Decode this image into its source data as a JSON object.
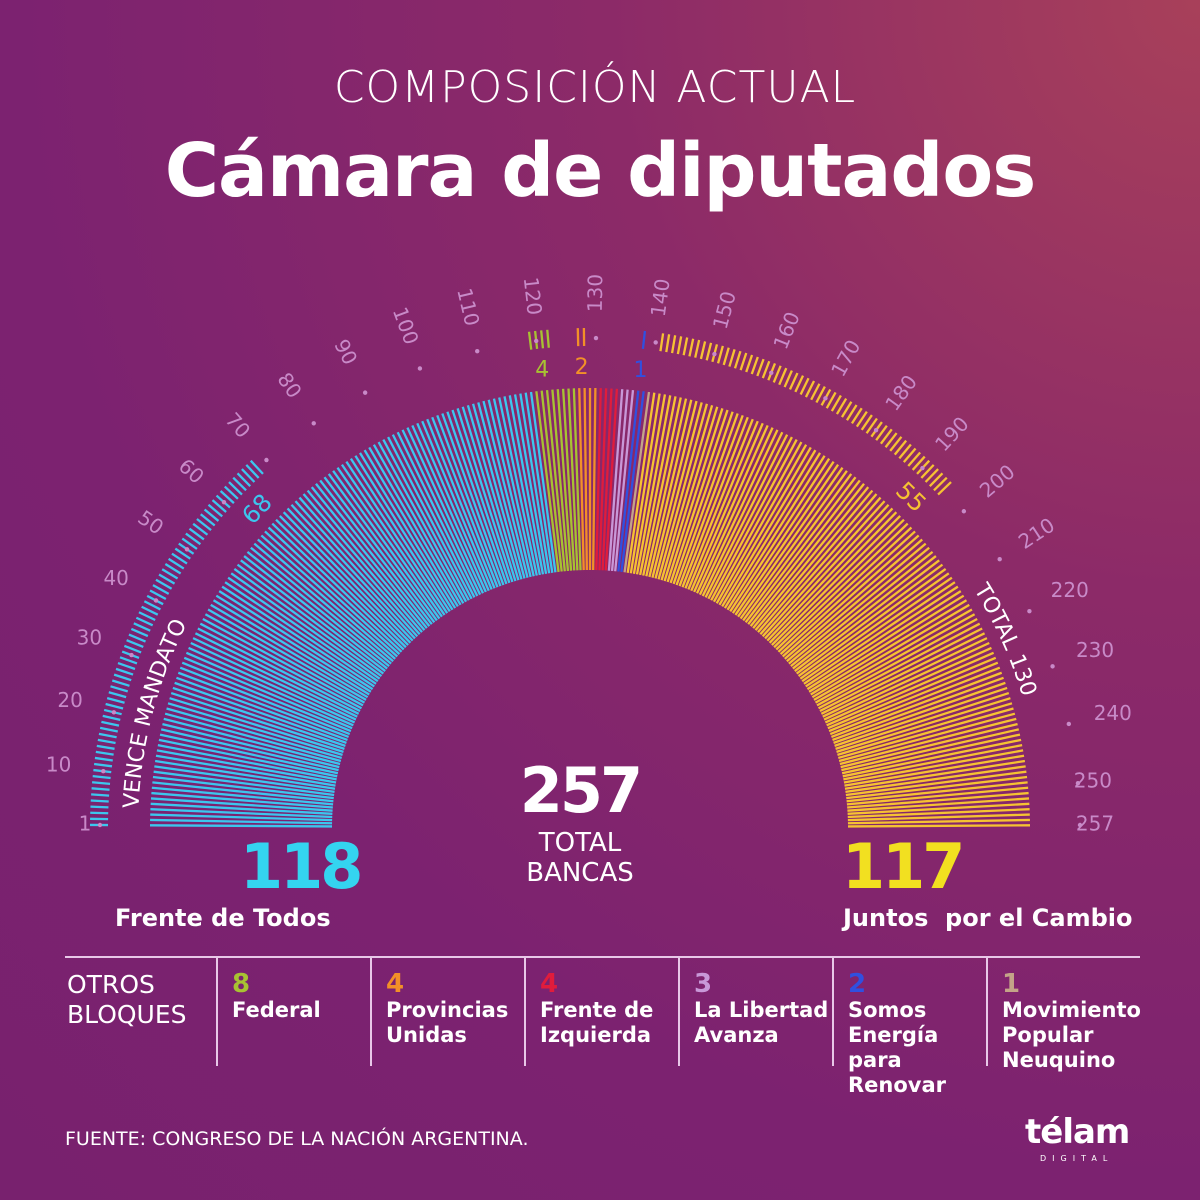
{
  "header": {
    "subtitle": "COMPOSICIÓN ACTUAL",
    "title": "Cámara de diputados"
  },
  "chart_data": {
    "type": "parliament",
    "total_seats": 257,
    "total_value": "257",
    "total_label_1": "TOTAL",
    "total_label_2": "BANCAS",
    "tick_labels": [
      "1",
      "10",
      "20",
      "30",
      "40",
      "50",
      "60",
      "70",
      "80",
      "90",
      "100",
      "110",
      "120",
      "130",
      "140",
      "150",
      "160",
      "170",
      "180",
      "190",
      "200",
      "210",
      "220",
      "230",
      "240",
      "250",
      "257"
    ],
    "ring_label_left": "VENCE MANDATO",
    "ring_label_right": "TOTAL 130",
    "blocks": [
      {
        "name": "Frente de Todos",
        "seats": 118,
        "expiring": 68,
        "color": "#3cc6ee",
        "expiring_label": "68"
      },
      {
        "name": "Federal",
        "seats": 8,
        "expiring": 4,
        "color": "#a8c232",
        "expiring_label": "4"
      },
      {
        "name": "Provincias Unidas",
        "seats": 4,
        "expiring": 2,
        "color": "#f29028",
        "expiring_label": "2"
      },
      {
        "name": "Frente de Izquierda",
        "seats": 4,
        "expiring": 0,
        "color": "#e01c3c"
      },
      {
        "name": "La Libertad Avanza",
        "seats": 3,
        "expiring": 0,
        "color": "#c898d8"
      },
      {
        "name": "Somos Energía para Renovar",
        "seats": 2,
        "expiring": 1,
        "color": "#3050e0",
        "expiring_label": "1"
      },
      {
        "name": "Movimiento Popular Neuquino",
        "seats": 1,
        "expiring": 0,
        "color": "#c4a488"
      },
      {
        "name": "Juntos por el Cambio",
        "seats": 117,
        "expiring": 55,
        "color": "#f6c232",
        "expiring_label": "55"
      }
    ]
  },
  "main_blocks": {
    "fdt": {
      "number": "118",
      "name": "Frente de Todos",
      "color": "#34d4f0"
    },
    "jxc": {
      "number": "117",
      "name": "Juntos  por el Cambio",
      "color": "#f2e020"
    }
  },
  "others": {
    "heading_1": "OTROS",
    "heading_2": "BLOQUES",
    "items": [
      {
        "number": "8",
        "name": "Federal",
        "color": "#a8c232"
      },
      {
        "number": "4",
        "name": "Provincias Unidas",
        "color": "#f29028"
      },
      {
        "number": "4",
        "name": "Frente de Izquierda",
        "color": "#e01c3c"
      },
      {
        "number": "3",
        "name": "La Libertad Avanza",
        "color": "#c898d8"
      },
      {
        "number": "2",
        "name": "Somos Energía para Renovar",
        "color": "#3050e0"
      },
      {
        "number": "1",
        "name": "Movimiento Popular Neuquino",
        "color": "#c4a488"
      }
    ]
  },
  "footer": {
    "source": "FUENTE: CONGRESO DE LA NACIÓN ARGENTINA.",
    "logo": "télam",
    "logo_sub": "DIGITAL"
  }
}
